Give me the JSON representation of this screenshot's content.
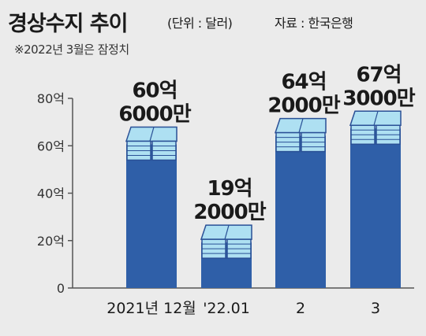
{
  "header": {
    "title": "경상수지 추이",
    "unit": "(단위 : 달러)",
    "source": "자료 : 한국은행",
    "note": "※2022년 3월은 잠정치"
  },
  "colors": {
    "bar": "#2f5fa8",
    "bar_dark": "#1f4688",
    "money_face": "#aee0f2",
    "money_edge": "#2a5096"
  },
  "chart_data": {
    "type": "bar",
    "title": "경상수지 추이",
    "categories": [
      "2021년 12월",
      "'22.01",
      "2",
      "3"
    ],
    "values": [
      6060000000.0,
      1920000000.0,
      6420000000.0,
      6730000000.0
    ],
    "data_labels": [
      [
        "60억",
        "6000만"
      ],
      [
        "19억",
        "2000만"
      ],
      [
        "64억",
        "2000만"
      ],
      [
        "67억",
        "3000만"
      ]
    ],
    "ylim": [
      0,
      8000000000.0
    ],
    "yticks": [
      {
        "value": 0,
        "label": "0"
      },
      {
        "value": 2000000000.0,
        "label": "20억"
      },
      {
        "value": 4000000000.0,
        "label": "40억"
      },
      {
        "value": 6000000000.0,
        "label": "60억"
      },
      {
        "value": 8000000000.0,
        "label": "80억"
      }
    ],
    "xlabel": "",
    "ylabel": "",
    "grid": false,
    "legend": "none"
  }
}
